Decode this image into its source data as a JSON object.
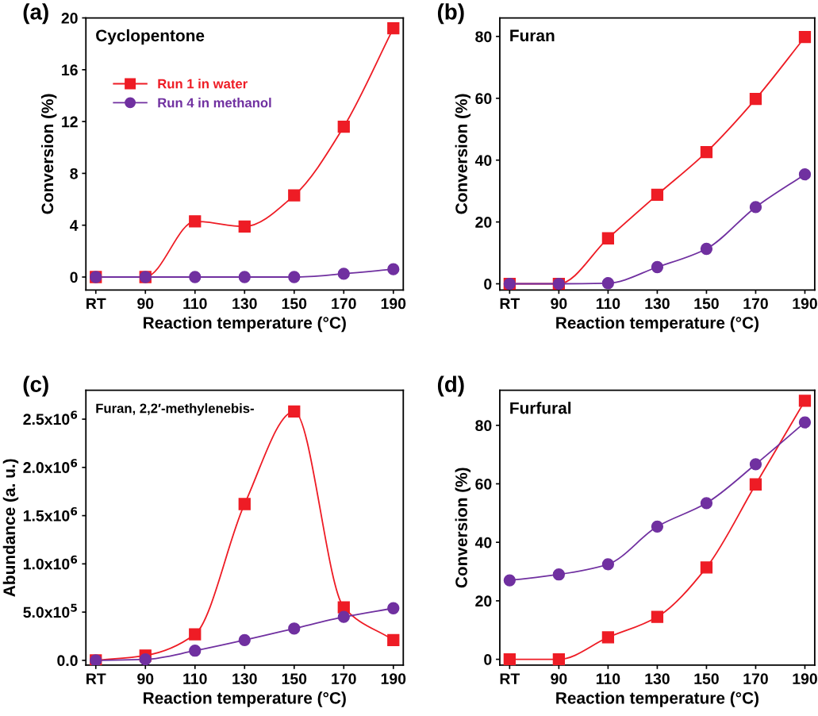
{
  "chart_data": [
    {
      "type": "line",
      "title": "(a)",
      "annotations": [
        "Cyclopentone"
      ],
      "xlabel": "Reaction temperature (°C)",
      "ylabel": "Conversion (%)",
      "categories": [
        "RT",
        "90",
        "110",
        "130",
        "150",
        "170",
        "190"
      ],
      "series": [
        {
          "name": "Run 1 in water",
          "color": "#ee1c25",
          "marker": "square",
          "values": [
            0,
            0,
            4.3,
            3.9,
            6.3,
            11.6,
            19.2
          ]
        },
        {
          "name": "Run 4 in methanol",
          "color": "#7030a0",
          "marker": "circle",
          "values": [
            0,
            0,
            0,
            0,
            0,
            0.25,
            0.6
          ]
        }
      ],
      "ylim": [
        -1,
        20
      ],
      "yticks": [
        0,
        4,
        8,
        12,
        16,
        20
      ],
      "legend": "top left",
      "grid": false
    },
    {
      "type": "line",
      "title": "(b)",
      "annotations": [
        "Furan"
      ],
      "xlabel": "Reaction temperature (°C)",
      "ylabel": "Conversion (%)",
      "categories": [
        "RT",
        "90",
        "110",
        "130",
        "150",
        "170",
        "190"
      ],
      "series": [
        {
          "color": "#ee1c25",
          "marker": "square",
          "values": [
            0,
            0,
            14.7,
            28.8,
            42.6,
            59.8,
            79.8
          ]
        },
        {
          "color": "#7030a0",
          "marker": "circle",
          "values": [
            0,
            0,
            0.2,
            5.4,
            11.3,
            24.8,
            35.4
          ]
        }
      ],
      "ylim": [
        -2,
        86
      ],
      "yticks": [
        0,
        20,
        40,
        60,
        80
      ],
      "grid": false
    },
    {
      "type": "line",
      "title": "(c)",
      "annotations": [
        "Furan, 2,2′-methylenebis-"
      ],
      "xlabel": "Reaction temperature (°C)",
      "ylabel": "Abundance (a. u.)",
      "categories": [
        "RT",
        "90",
        "110",
        "130",
        "150",
        "170",
        "190"
      ],
      "series": [
        {
          "color": "#ee1c25",
          "marker": "square",
          "values": [
            0,
            50000,
            270000,
            1620000,
            2580000,
            550000,
            210000
          ]
        },
        {
          "color": "#7030a0",
          "marker": "circle",
          "values": [
            0,
            10000,
            100000,
            210000,
            330000,
            450000,
            540000
          ]
        }
      ],
      "ylim": [
        -50000,
        2800000
      ],
      "yticks": [
        {
          "value": 0,
          "label": "0.0"
        },
        {
          "value": 500000,
          "label": "5.0x10$^{5}$"
        },
        {
          "value": 1000000,
          "label": "1.0x10$^{6}$"
        },
        {
          "value": 1500000,
          "label": "1.5x10$^{6}$"
        },
        {
          "value": 2000000,
          "label": "2.0x10$^{6}$"
        },
        {
          "value": 2500000,
          "label": "2.5x10$^{6}$"
        }
      ],
      "grid": false
    },
    {
      "type": "line",
      "title": "(d)",
      "annotations": [
        "Furfural"
      ],
      "xlabel": "Reaction temperature (°C)",
      "ylabel": "Conversion (%)",
      "categories": [
        "RT",
        "90",
        "110",
        "130",
        "150",
        "170",
        "190"
      ],
      "series": [
        {
          "color": "#ee1c25",
          "marker": "square",
          "values": [
            0,
            0,
            7.5,
            14.5,
            31.4,
            59.8,
            88.4
          ]
        },
        {
          "color": "#7030a0",
          "marker": "circle",
          "values": [
            27,
            29,
            32.5,
            45.4,
            53.4,
            66.7,
            81
          ]
        }
      ],
      "ylim": [
        -2,
        92
      ],
      "yticks": [
        0,
        20,
        40,
        60,
        80
      ],
      "grid": false
    }
  ]
}
